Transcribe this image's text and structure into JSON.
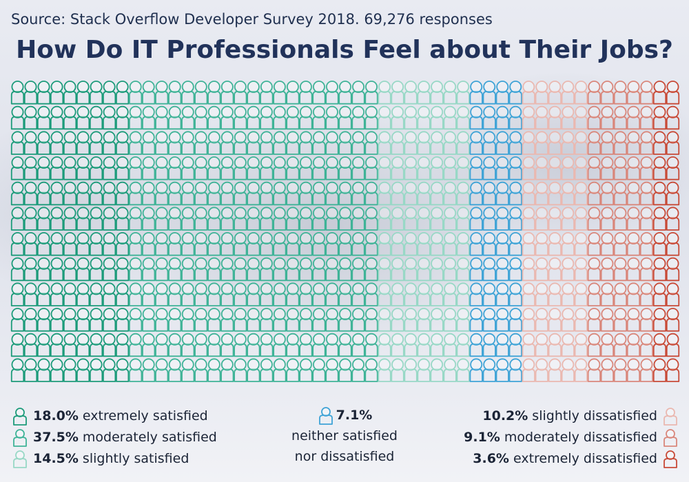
{
  "source": "Source: Stack Overflow Developer Survey 2018. 69,276 responses",
  "title": "How Do IT Professionals Feel about Their Jobs?",
  "chart_data": {
    "type": "pictogram",
    "grid_rows": 12,
    "grid_columns": 51,
    "series": [
      {
        "name": "extremely satisfied",
        "value": 18.0,
        "label": "18.0%",
        "color": "#1c9b7a"
      },
      {
        "name": "moderately satisfied",
        "value": 37.5,
        "label": "37.5%",
        "color": "#3fb397"
      },
      {
        "name": "slightly satisfied",
        "value": 14.5,
        "label": "14.5%",
        "color": "#98d8c6"
      },
      {
        "name": "neither satisfied nor dissatisfied",
        "value": 7.1,
        "label": "7.1%",
        "color": "#3ea3d6"
      },
      {
        "name": "slightly dissatisfied",
        "value": 10.2,
        "label": "10.2%",
        "color": "#eab8b0"
      },
      {
        "name": "moderately dissatisfied",
        "value": 9.1,
        "label": "9.1%",
        "color": "#d9877b"
      },
      {
        "name": "extremely dissatisfied",
        "value": 3.6,
        "label": "3.6%",
        "color": "#c84a37"
      }
    ]
  },
  "legend": {
    "extremely_satisfied": {
      "pct": "18.0%",
      "text": "extremely satisfied"
    },
    "moderately_satisfied": {
      "pct": "37.5%",
      "text": "moderately satisfied"
    },
    "slightly_satisfied": {
      "pct": "14.5%",
      "text": "slightly satisfied"
    },
    "neither": {
      "pct": "7.1%",
      "line1": "neither satisfied",
      "line2": "nor dissatisfied"
    },
    "slightly_dissatisfied": {
      "pct": "10.2%",
      "text": "slightly dissatisfied"
    },
    "moderately_dissatisfied": {
      "pct": "9.1%",
      "text": "moderately dissatisfied"
    },
    "extremely_dissatisfied": {
      "pct": "3.6%",
      "text": "extremely dissatisfied"
    }
  }
}
